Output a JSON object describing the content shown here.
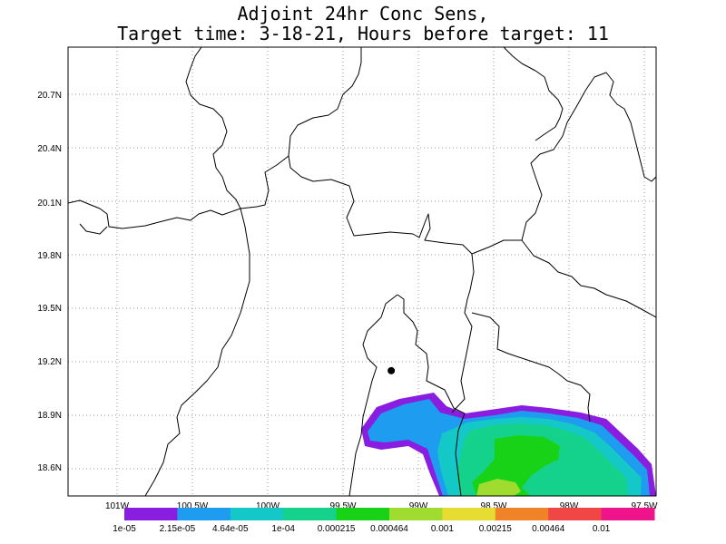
{
  "title": {
    "line1": "Adjoint 24hr Conc Sens,",
    "line2": "Target time: 3-18-21, Hours before target: 11"
  },
  "map": {
    "lat_labels": [
      "20.7N",
      "20.4N",
      "20.1N",
      "19.8N",
      "19.5N",
      "19.2N",
      "18.9N",
      "18.6N"
    ],
    "lon_labels": [
      "101W",
      "100.5W",
      "100W",
      "99.5W",
      "99W",
      "98.5W",
      "98W",
      "97.5W"
    ],
    "lat_values": [
      20.7,
      20.4,
      20.1,
      19.8,
      19.5,
      19.2,
      18.9,
      18.6
    ],
    "lon_values": [
      -101,
      -100.5,
      -100,
      -99.5,
      -99,
      -98.5,
      -98,
      -97.5
    ],
    "target_marker": {
      "lat": 19.15,
      "lon": -99.18
    }
  },
  "colorbar": {
    "colors": [
      "#8a1ee0",
      "#1e9cf0",
      "#14c8c8",
      "#14d28c",
      "#18d218",
      "#a0dc30",
      "#e6dc32",
      "#f08228",
      "#f04646",
      "#f0148c"
    ],
    "labels": [
      "1e-05",
      "2.15e-05",
      "4.64e-05",
      "1e-04",
      "0.000215",
      "0.000464",
      "0.001",
      "0.00215",
      "0.00464",
      "0.01"
    ]
  }
}
